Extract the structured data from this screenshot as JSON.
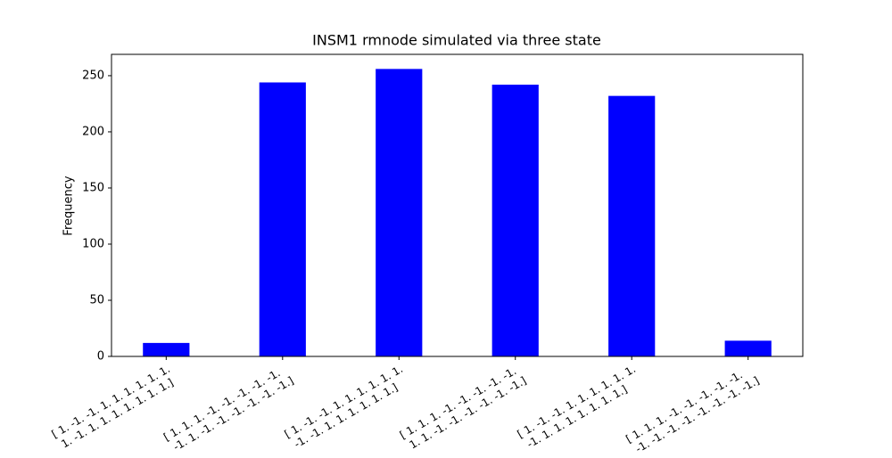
{
  "chart_data": {
    "type": "bar",
    "title": "INSM1 rmnode simulated via three state",
    "ylabel": "Frequency",
    "categories": [
      "[ 1. -1. -1. 1. 1. 1. 1. 1. 1.\n 1. -1. 1. 1. 1. 1. 1. 1. 1.]",
      "[ 1. 1. 1. -1. -1. -1. -1. -1.\n -1. 1. -1. -1. -1. -1. -1. -1.]",
      "[ 1. -1. -1. 1. 1. 1. 1. 1. 1.\n -1. -1. 1. 1. 1. 1. 1. 1.]",
      "[ 1. 1. 1. -1. -1. -1. -1. -1.\n 1. 1. -1. -1. -1. -1. -1. -1.]",
      "[ 1. -1. -1. 1. 1. 1. 1. 1. 1.\n -1. 1. 1. 1. 1. 1. 1. 1.]",
      "[ 1. 1. 1. -1. -1. -1. -1. -1.\n -1. -1. -1. -1. -1. -1. -1. -1.]"
    ],
    "values": [
      12,
      244,
      256,
      242,
      232,
      14
    ],
    "color": "#0000ff",
    "ylim": [
      0,
      269
    ],
    "yticks": [
      0,
      50,
      100,
      150,
      200,
      250
    ]
  }
}
